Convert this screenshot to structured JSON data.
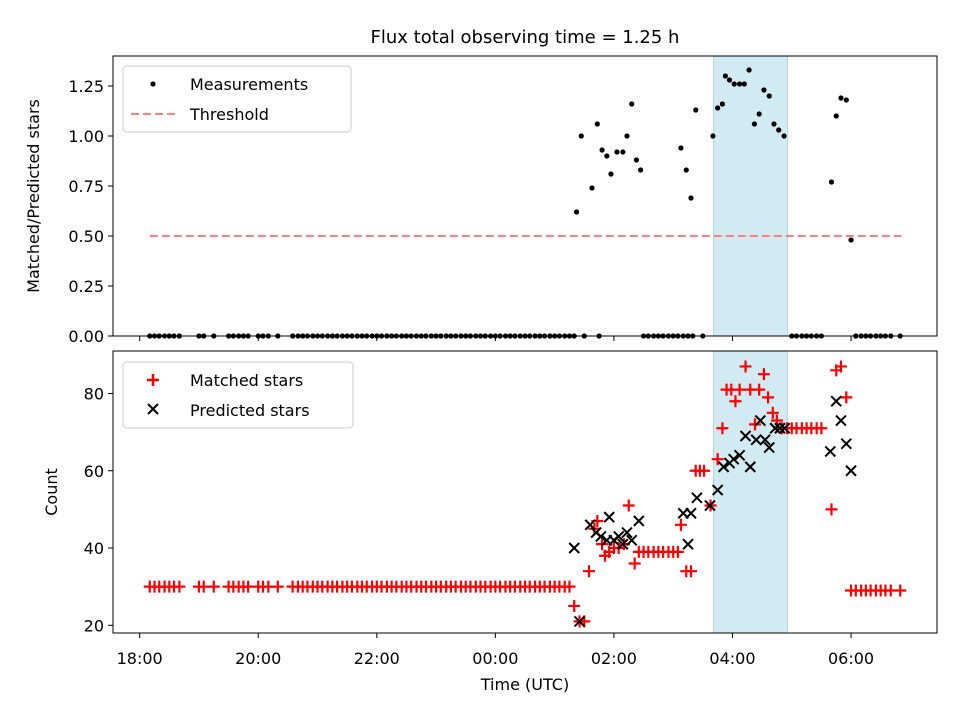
{
  "title": "Flux total observing time = 1.25 h",
  "colors": {
    "measurement": "#000000",
    "threshold": "#ff7f7f",
    "matched": "#ff0000",
    "predicted": "#000000",
    "highlight": "#add8e6"
  },
  "chart_data": [
    {
      "type": "scatter",
      "ylabel": "Matched/Predicted stars",
      "ylim": [
        0,
        1.4
      ],
      "yticks": [
        0.0,
        0.25,
        0.5,
        0.75,
        1.0,
        1.25
      ],
      "ytick_labels": [
        "0.00",
        "0.25",
        "0.50",
        "0.75",
        "1.00",
        "1.25"
      ],
      "legend": [
        "Measurements",
        "Threshold"
      ],
      "legend_position": "top-left",
      "threshold": {
        "value": 0.5,
        "x_start": 18.17,
        "x_end": 30.85
      },
      "highlight_span": [
        27.68,
        28.93
      ],
      "zero_points_x": [
        18.17,
        18.25,
        18.33,
        18.42,
        18.5,
        18.58,
        18.67,
        19.0,
        19.08,
        19.25,
        19.5,
        19.58,
        19.67,
        19.75,
        19.83,
        20.0,
        20.08,
        20.17,
        20.33,
        20.58,
        20.67,
        20.75,
        20.83,
        20.92,
        21.0,
        21.08,
        21.17,
        21.25,
        21.33,
        21.42,
        21.5,
        21.58,
        21.67,
        21.75,
        21.83,
        21.92,
        22.0,
        22.08,
        22.17,
        22.25,
        22.33,
        22.42,
        22.5,
        22.58,
        22.67,
        22.75,
        22.83,
        22.92,
        23.0,
        23.08,
        23.17,
        23.25,
        23.33,
        23.42,
        23.5,
        23.58,
        23.67,
        23.75,
        23.83,
        23.92,
        24.0,
        24.08,
        24.17,
        24.25,
        24.33,
        24.42,
        24.5,
        24.58,
        24.67,
        24.75,
        24.83,
        24.92,
        25.0,
        25.08,
        25.17,
        25.25,
        25.33,
        25.5,
        25.75,
        26.5,
        26.58,
        26.67,
        26.75,
        26.83,
        26.92,
        27.0,
        27.08,
        27.17,
        27.25,
        27.33,
        27.5,
        29.0,
        29.08,
        29.17,
        29.25,
        29.33,
        29.42,
        29.5,
        30.08,
        30.17,
        30.25,
        30.33,
        30.42,
        30.5,
        30.58,
        30.67,
        30.83
      ],
      "points": [
        {
          "x": 25.37,
          "y": 0.62
        },
        {
          "x": 25.45,
          "y": 1.0
        },
        {
          "x": 25.63,
          "y": 0.74
        },
        {
          "x": 25.72,
          "y": 1.06
        },
        {
          "x": 25.8,
          "y": 0.93
        },
        {
          "x": 25.88,
          "y": 0.9
        },
        {
          "x": 25.95,
          "y": 0.81
        },
        {
          "x": 26.05,
          "y": 0.92
        },
        {
          "x": 26.15,
          "y": 0.92
        },
        {
          "x": 26.22,
          "y": 1.0
        },
        {
          "x": 26.3,
          "y": 1.16
        },
        {
          "x": 26.38,
          "y": 0.88
        },
        {
          "x": 26.45,
          "y": 0.83
        },
        {
          "x": 27.13,
          "y": 0.94
        },
        {
          "x": 27.22,
          "y": 0.83
        },
        {
          "x": 27.3,
          "y": 0.69
        },
        {
          "x": 27.38,
          "y": 1.13
        },
        {
          "x": 27.67,
          "y": 1.0
        },
        {
          "x": 27.75,
          "y": 1.14
        },
        {
          "x": 27.83,
          "y": 1.16
        },
        {
          "x": 27.88,
          "y": 1.3
        },
        {
          "x": 27.95,
          "y": 1.28
        },
        {
          "x": 28.03,
          "y": 1.26
        },
        {
          "x": 28.12,
          "y": 1.26
        },
        {
          "x": 28.2,
          "y": 1.26
        },
        {
          "x": 28.28,
          "y": 1.33
        },
        {
          "x": 28.37,
          "y": 1.06
        },
        {
          "x": 28.45,
          "y": 1.11
        },
        {
          "x": 28.53,
          "y": 1.23
        },
        {
          "x": 28.62,
          "y": 1.2
        },
        {
          "x": 28.7,
          "y": 1.06
        },
        {
          "x": 28.78,
          "y": 1.03
        },
        {
          "x": 28.87,
          "y": 1.0
        },
        {
          "x": 29.67,
          "y": 0.77
        },
        {
          "x": 29.75,
          "y": 1.1
        },
        {
          "x": 29.83,
          "y": 1.19
        },
        {
          "x": 29.92,
          "y": 1.18
        },
        {
          "x": 30.0,
          "y": 0.48
        }
      ]
    },
    {
      "type": "scatter",
      "ylabel": "Count",
      "xlabel": "Time (UTC)",
      "xlim": [
        17.55,
        31.45
      ],
      "xticks": [
        18,
        20,
        22,
        24,
        26,
        28,
        30
      ],
      "xtick_labels": [
        "18:00",
        "20:00",
        "22:00",
        "00:00",
        "02:00",
        "04:00",
        "06:00"
      ],
      "ylim": [
        18,
        91
      ],
      "yticks": [
        20,
        40,
        60,
        80
      ],
      "ytick_labels": [
        "20",
        "40",
        "60",
        "80"
      ],
      "legend": [
        "Matched stars",
        "Predicted stars"
      ],
      "legend_position": "top-left",
      "highlight_span": [
        27.68,
        28.93
      ],
      "matched_const_30_x": [
        18.17,
        18.25,
        18.33,
        18.42,
        18.5,
        18.58,
        18.67,
        19.0,
        19.08,
        19.25,
        19.5,
        19.58,
        19.67,
        19.75,
        19.83,
        20.0,
        20.08,
        20.17,
        20.33,
        20.58,
        20.67,
        20.75,
        20.83,
        20.92,
        21.0,
        21.08,
        21.17,
        21.25,
        21.33,
        21.42,
        21.5,
        21.58,
        21.67,
        21.75,
        21.83,
        21.92,
        22.0,
        22.08,
        22.17,
        22.25,
        22.33,
        22.42,
        22.5,
        22.58,
        22.67,
        22.75,
        22.83,
        22.92,
        23.0,
        23.08,
        23.17,
        23.25,
        23.33,
        23.42,
        23.5,
        23.58,
        23.67,
        23.75,
        23.83,
        23.92,
        24.0,
        24.08,
        24.17,
        24.25,
        24.33,
        24.42,
        24.5,
        24.58,
        24.67,
        24.75,
        24.83,
        24.92,
        25.0,
        25.08,
        25.17,
        25.25
      ],
      "matched_extra": [
        {
          "x": 25.33,
          "y": 25
        },
        {
          "x": 25.42,
          "y": 21
        },
        {
          "x": 25.5,
          "y": 21
        },
        {
          "x": 25.58,
          "y": 34
        },
        {
          "x": 25.67,
          "y": 45
        },
        {
          "x": 25.72,
          "y": 47
        },
        {
          "x": 25.8,
          "y": 41
        },
        {
          "x": 25.85,
          "y": 38
        },
        {
          "x": 25.92,
          "y": 39
        },
        {
          "x": 26.0,
          "y": 40
        },
        {
          "x": 26.08,
          "y": 40
        },
        {
          "x": 26.17,
          "y": 41
        },
        {
          "x": 26.25,
          "y": 51
        },
        {
          "x": 26.35,
          "y": 36
        },
        {
          "x": 26.42,
          "y": 39
        },
        {
          "x": 26.5,
          "y": 39
        },
        {
          "x": 26.58,
          "y": 39
        },
        {
          "x": 26.67,
          "y": 39
        },
        {
          "x": 26.75,
          "y": 39
        },
        {
          "x": 26.83,
          "y": 39
        },
        {
          "x": 26.92,
          "y": 39
        },
        {
          "x": 27.0,
          "y": 39
        },
        {
          "x": 27.08,
          "y": 39
        },
        {
          "x": 27.13,
          "y": 46
        },
        {
          "x": 27.22,
          "y": 34
        },
        {
          "x": 27.3,
          "y": 34
        },
        {
          "x": 27.38,
          "y": 60
        },
        {
          "x": 27.45,
          "y": 60
        },
        {
          "x": 27.52,
          "y": 60
        },
        {
          "x": 27.63,
          "y": 51
        },
        {
          "x": 27.75,
          "y": 63
        },
        {
          "x": 27.83,
          "y": 71
        },
        {
          "x": 27.9,
          "y": 81
        },
        {
          "x": 27.98,
          "y": 81
        },
        {
          "x": 28.05,
          "y": 78
        },
        {
          "x": 28.12,
          "y": 81
        },
        {
          "x": 28.22,
          "y": 87
        },
        {
          "x": 28.3,
          "y": 81
        },
        {
          "x": 28.38,
          "y": 72
        },
        {
          "x": 28.45,
          "y": 81
        },
        {
          "x": 28.53,
          "y": 85
        },
        {
          "x": 28.6,
          "y": 79
        },
        {
          "x": 28.68,
          "y": 75
        },
        {
          "x": 28.75,
          "y": 73
        },
        {
          "x": 28.83,
          "y": 71
        },
        {
          "x": 28.92,
          "y": 71
        },
        {
          "x": 29.0,
          "y": 71
        },
        {
          "x": 29.08,
          "y": 71
        },
        {
          "x": 29.17,
          "y": 71
        },
        {
          "x": 29.25,
          "y": 71
        },
        {
          "x": 29.33,
          "y": 71
        },
        {
          "x": 29.42,
          "y": 71
        },
        {
          "x": 29.5,
          "y": 71
        },
        {
          "x": 29.67,
          "y": 50
        },
        {
          "x": 29.75,
          "y": 86
        },
        {
          "x": 29.83,
          "y": 87
        },
        {
          "x": 29.92,
          "y": 79
        },
        {
          "x": 30.0,
          "y": 29
        },
        {
          "x": 30.08,
          "y": 29
        },
        {
          "x": 30.17,
          "y": 29
        },
        {
          "x": 30.25,
          "y": 29
        },
        {
          "x": 30.33,
          "y": 29
        },
        {
          "x": 30.42,
          "y": 29
        },
        {
          "x": 30.5,
          "y": 29
        },
        {
          "x": 30.58,
          "y": 29
        },
        {
          "x": 30.67,
          "y": 29
        },
        {
          "x": 30.83,
          "y": 29
        }
      ],
      "predicted": [
        {
          "x": 25.33,
          "y": 40
        },
        {
          "x": 25.42,
          "y": 21
        },
        {
          "x": 25.6,
          "y": 46
        },
        {
          "x": 25.7,
          "y": 44
        },
        {
          "x": 25.78,
          "y": 43
        },
        {
          "x": 25.88,
          "y": 42
        },
        {
          "x": 25.92,
          "y": 48
        },
        {
          "x": 26.0,
          "y": 42
        },
        {
          "x": 26.08,
          "y": 43
        },
        {
          "x": 26.15,
          "y": 41
        },
        {
          "x": 26.22,
          "y": 44
        },
        {
          "x": 26.3,
          "y": 42
        },
        {
          "x": 26.42,
          "y": 47
        },
        {
          "x": 27.17,
          "y": 49
        },
        {
          "x": 27.25,
          "y": 41
        },
        {
          "x": 27.3,
          "y": 49
        },
        {
          "x": 27.4,
          "y": 53
        },
        {
          "x": 27.62,
          "y": 51
        },
        {
          "x": 27.75,
          "y": 55
        },
        {
          "x": 27.85,
          "y": 61
        },
        {
          "x": 27.95,
          "y": 62
        },
        {
          "x": 28.02,
          "y": 63
        },
        {
          "x": 28.12,
          "y": 64
        },
        {
          "x": 28.22,
          "y": 69
        },
        {
          "x": 28.3,
          "y": 61
        },
        {
          "x": 28.4,
          "y": 68
        },
        {
          "x": 28.47,
          "y": 73
        },
        {
          "x": 28.55,
          "y": 68
        },
        {
          "x": 28.62,
          "y": 66
        },
        {
          "x": 28.72,
          "y": 71
        },
        {
          "x": 28.8,
          "y": 71
        },
        {
          "x": 28.88,
          "y": 71
        },
        {
          "x": 29.65,
          "y": 65
        },
        {
          "x": 29.75,
          "y": 78
        },
        {
          "x": 29.83,
          "y": 73
        },
        {
          "x": 29.92,
          "y": 67
        },
        {
          "x": 30.0,
          "y": 60
        }
      ]
    }
  ]
}
